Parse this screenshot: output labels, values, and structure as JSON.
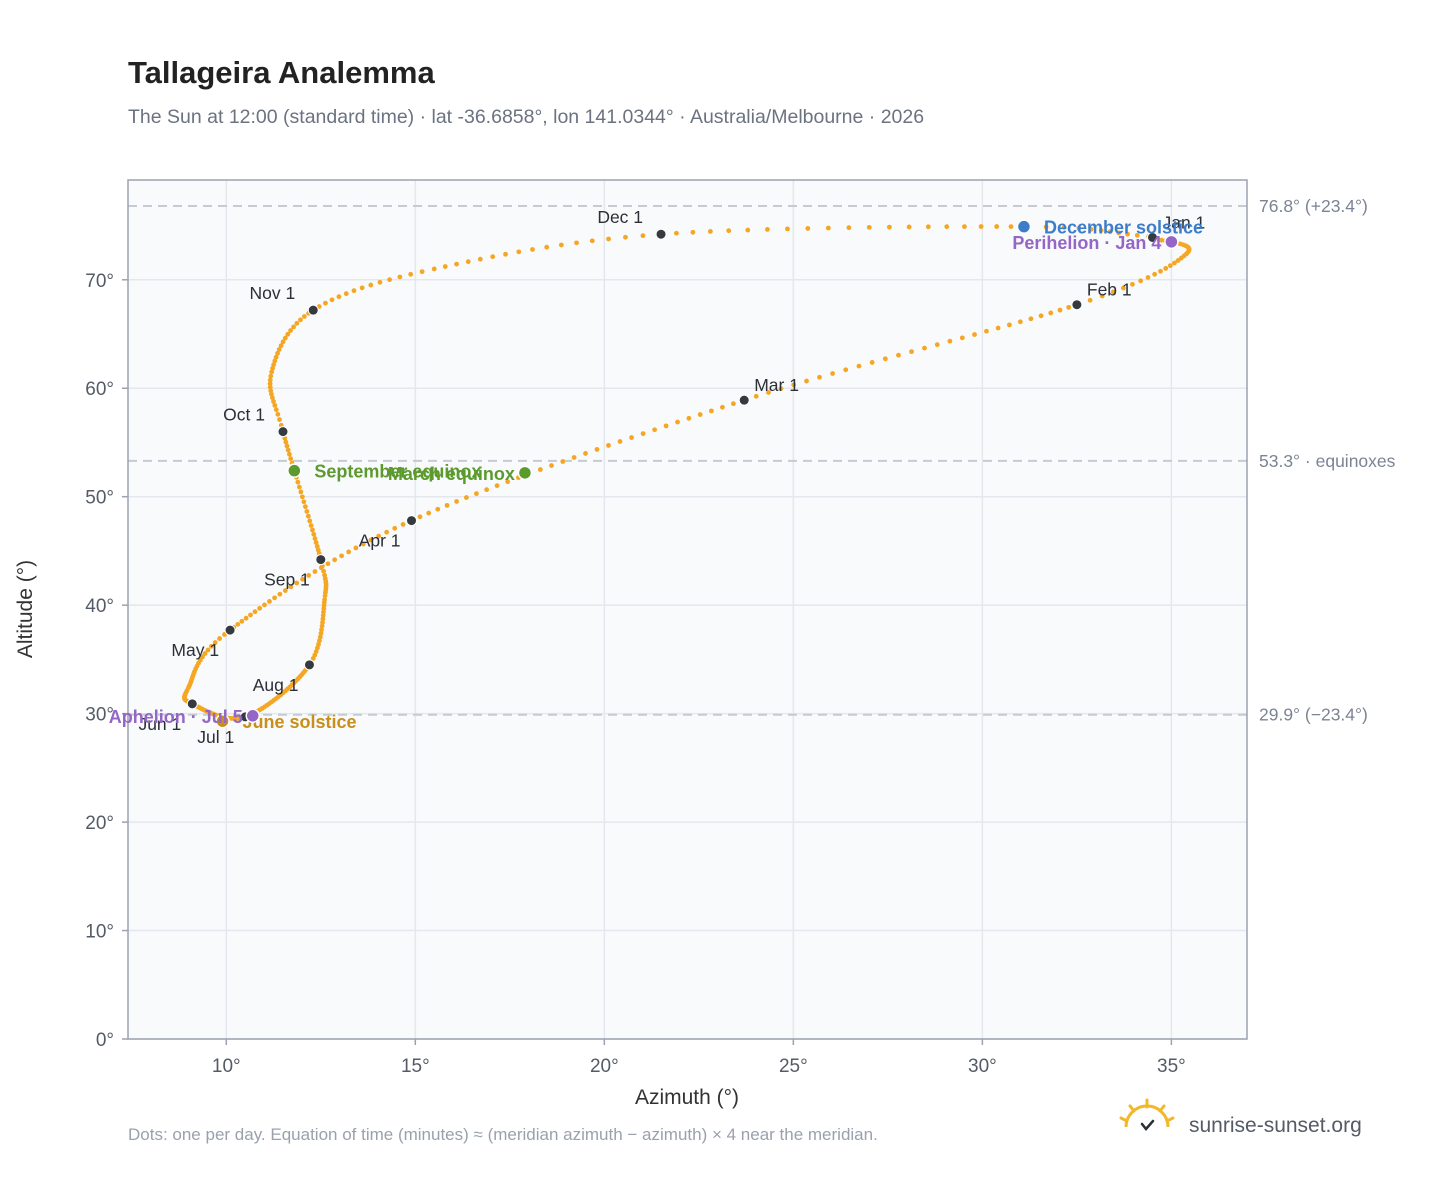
{
  "header": {
    "title": "Tallageira Analemma",
    "subtitle": "The Sun at 12:00 (standard time) · lat -36.6858°, lon 141.0344° · Australia/Melbourne · 2026"
  },
  "footer": {
    "note": "Dots: one per day. Equation of time (minutes) ≈ (meridian azimuth − azimuth) × 4 near the meridian.",
    "brand": "sunrise-sunset.org"
  },
  "colors": {
    "curve": "#f5a623",
    "month_marker": "#343a40",
    "equinox": "#5c9a2e",
    "december_solstice": "#3d7cc9",
    "june_solstice": "#c98f1a",
    "apsis": "#9466c6",
    "reference_line": "#c5cbd3",
    "plot_background": "#f8fafc",
    "grid": "#e4e8ee",
    "frame": "#9aa3b0"
  },
  "chart_data": {
    "type": "scatter",
    "title": "Tallageira Analemma",
    "xlabel": "Azimuth (°)",
    "ylabel": "Altitude (°)",
    "xlim": [
      7.4,
      37.0
    ],
    "ylim": [
      0,
      79.2
    ],
    "x_ticks": [
      10,
      15,
      20,
      25,
      30,
      35
    ],
    "x_tick_labels": [
      "10°",
      "15°",
      "20°",
      "25°",
      "30°",
      "35°"
    ],
    "y_ticks": [
      0,
      10,
      20,
      30,
      40,
      50,
      60,
      70
    ],
    "y_tick_labels": [
      "0°",
      "10°",
      "20°",
      "30°",
      "40°",
      "50°",
      "60°",
      "70°"
    ],
    "grid": true,
    "series": [
      {
        "marker": "daily dots",
        "points": [
          {
            "date": "2026-01-01",
            "az": 34.5,
            "alt": 73.9
          },
          {
            "date": "2026-01-16",
            "az": 35.4,
            "alt": 72.4
          },
          {
            "date": "2026-02-01",
            "az": 32.5,
            "alt": 67.7
          },
          {
            "date": "2026-03-01",
            "az": 23.7,
            "alt": 58.9
          },
          {
            "date": "2026-04-01",
            "az": 14.9,
            "alt": 47.8
          },
          {
            "date": "2026-05-01",
            "az": 10.1,
            "alt": 37.7
          },
          {
            "date": "2026-05-20",
            "az": 9.0,
            "alt": 32.4
          },
          {
            "date": "2026-06-01",
            "az": 9.1,
            "alt": 30.9
          },
          {
            "date": "2026-07-01",
            "az": 10.5,
            "alt": 29.7
          },
          {
            "date": "2026-08-01",
            "az": 12.2,
            "alt": 34.5
          },
          {
            "date": "2026-08-20",
            "az": 12.6,
            "alt": 40.5
          },
          {
            "date": "2026-09-01",
            "az": 12.5,
            "alt": 44.2
          },
          {
            "date": "2026-10-01",
            "az": 11.5,
            "alt": 56.0
          },
          {
            "date": "2026-10-15",
            "az": 11.2,
            "alt": 61.5
          },
          {
            "date": "2026-11-01",
            "az": 12.3,
            "alt": 67.2
          },
          {
            "date": "2026-11-15",
            "az": 15.5,
            "alt": 71.0
          },
          {
            "date": "2026-12-01",
            "az": 21.5,
            "alt": 74.2
          },
          {
            "date": "2026-12-21",
            "az": 31.1,
            "alt": 74.9
          },
          {
            "date": "2026-12-31",
            "az": 34.4,
            "alt": 74.0
          }
        ]
      }
    ],
    "month_markers": [
      {
        "label": "Jan 1",
        "az": 34.5,
        "alt": 73.9,
        "label_pos": "above-right"
      },
      {
        "label": "Feb 1",
        "az": 32.5,
        "alt": 67.7,
        "label_pos": "above-right"
      },
      {
        "label": "Mar 1",
        "az": 23.7,
        "alt": 58.9,
        "label_pos": "above-right"
      },
      {
        "label": "Apr 1",
        "az": 14.9,
        "alt": 47.8,
        "label_pos": "below-left"
      },
      {
        "label": "May 1",
        "az": 10.1,
        "alt": 37.7,
        "label_pos": "below-left"
      },
      {
        "label": "Jun 1",
        "az": 9.1,
        "alt": 30.9,
        "label_pos": "below-left"
      },
      {
        "label": "Jul 1",
        "az": 10.5,
        "alt": 29.7,
        "label_pos": "below-left"
      },
      {
        "label": "Aug 1",
        "az": 12.2,
        "alt": 34.5,
        "label_pos": "below-left"
      },
      {
        "label": "Sep 1",
        "az": 12.5,
        "alt": 44.2,
        "label_pos": "below-left"
      },
      {
        "label": "Oct 1",
        "az": 11.5,
        "alt": 56.0,
        "label_pos": "above-left"
      },
      {
        "label": "Nov 1",
        "az": 12.3,
        "alt": 67.2,
        "label_pos": "above-left"
      },
      {
        "label": "Dec 1",
        "az": 21.5,
        "alt": 74.2,
        "label_pos": "above-left"
      }
    ],
    "events": [
      {
        "label": "December solstice",
        "az": 31.1,
        "alt": 74.9,
        "color": "#3d7cc9",
        "label_pos": "right"
      },
      {
        "label": "Perihelion · Jan 4",
        "az": 35.0,
        "alt": 73.5,
        "color": "#9466c6",
        "label_pos": "left"
      },
      {
        "label": "March equinox",
        "az": 17.9,
        "alt": 52.2,
        "color": "#5c9a2e",
        "label_pos": "left"
      },
      {
        "label": "September equinox",
        "az": 11.8,
        "alt": 52.4,
        "color": "#5c9a2e",
        "label_pos": "right"
      },
      {
        "label": "June solstice",
        "az": 9.9,
        "alt": 29.3,
        "color": "#c98f1a",
        "label_pos": "right"
      },
      {
        "label": "Aphelion · Jul 5",
        "az": 10.7,
        "alt": 29.8,
        "color": "#9466c6",
        "label_pos": "left"
      }
    ],
    "reference_lines": [
      {
        "alt": 76.8,
        "label": "76.8° (+23.4°)"
      },
      {
        "alt": 53.3,
        "label": "53.3° · equinoxes"
      },
      {
        "alt": 29.9,
        "label": "29.9° (−23.4°)"
      }
    ]
  }
}
